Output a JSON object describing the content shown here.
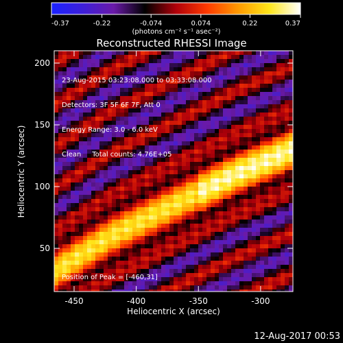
{
  "colorbar": {
    "tick_labels": [
      "-0.37",
      "-0.22",
      "-0.074",
      "0.074",
      "0.22",
      "0.37"
    ],
    "min": -0.37,
    "max": 0.37,
    "units_text": "(photons cm⁻² s⁻¹ asec⁻²)"
  },
  "footer": {
    "timestamp": "12-Aug-2017 00:53"
  },
  "chart_data": {
    "type": "heatmap",
    "title": "Reconstructed RHESSI Image",
    "xlabel": "Heliocentric X (arcsec)",
    "ylabel": "Heliocentric Y (arcsec)",
    "xlim": [
      -466,
      -274
    ],
    "ylim": [
      15,
      210
    ],
    "x_ticks": [
      -450,
      -400,
      -350,
      -300
    ],
    "y_ticks": [
      50,
      100,
      150,
      200
    ],
    "annotations": [
      "23-Aug-2015 03:23:08.000 to 03:33:08.000",
      "Detectors: 3F 5F 6F 7F, Att 0",
      "Energy Range: 3.0 - 6.0 keV",
      "Clean     Total counts: 4.76E+05"
    ],
    "peak_label": "Position of Peak = [-460,31]",
    "peak_position": [
      -460,
      31
    ],
    "grid": false,
    "colormap": "blue-purple-black-red-yellow-white",
    "colormap_stops": [
      "#1a22ff",
      "#3d1fd9",
      "#6a1aa8",
      "#000000",
      "#b0000a",
      "#ff3a00",
      "#ff9a00",
      "#ffe61a",
      "#ffffff"
    ],
    "structure": {
      "band_center_y_at_x": [
        [
          -466,
          31
        ],
        [
          -420,
          60
        ],
        [
          -380,
          80
        ],
        [
          -340,
          100
        ],
        [
          -320,
          110
        ],
        [
          -274,
          130
        ]
      ],
      "band_width_arcsec": 32,
      "band_peak_value": 0.37,
      "background_value": -0.15
    }
  }
}
